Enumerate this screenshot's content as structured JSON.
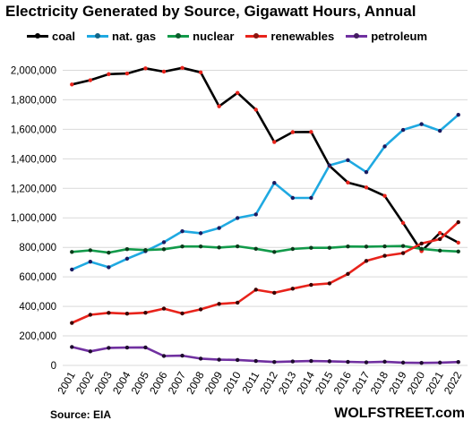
{
  "chart_data": {
    "type": "line",
    "title": "Electricity Generated by Source, Gigawatt Hours, Annual",
    "x": [
      "2001",
      "2002",
      "2003",
      "2004",
      "2005",
      "2006",
      "2007",
      "2008",
      "2009",
      "2010",
      "2011",
      "2012",
      "2013",
      "2014",
      "2015",
      "2016",
      "2017",
      "2018",
      "2019",
      "2020",
      "2021",
      "2022"
    ],
    "ylim": [
      0,
      2100000
    ],
    "yticks": [
      0,
      200000,
      400000,
      600000,
      800000,
      1000000,
      1200000,
      1400000,
      1600000,
      1800000,
      2000000
    ],
    "ytick_labels": [
      "0",
      "200,000",
      "400,000",
      "600,000",
      "800,000",
      "1,000,000",
      "1,200,000",
      "1,400,000",
      "1,600,000",
      "1,800,000",
      "2,000,000"
    ],
    "grid": true,
    "legend_position": "top",
    "series": [
      {
        "name": "coal",
        "color": "#000000",
        "marker_color": "#e8231b",
        "values": [
          1904000,
          1933000,
          1974000,
          1978000,
          2013000,
          1991000,
          2016000,
          1986000,
          1756000,
          1847000,
          1733000,
          1514000,
          1581000,
          1582000,
          1352000,
          1239000,
          1206000,
          1149000,
          965000,
          774000,
          898000,
          832000
        ]
      },
      {
        "name": "nat. gas",
        "color": "#1fa9e1",
        "marker_color": "#1a1a60",
        "values": [
          650000,
          703000,
          665000,
          723000,
          774000,
          835000,
          909000,
          896000,
          931000,
          999000,
          1023000,
          1237000,
          1135000,
          1135000,
          1356000,
          1391000,
          1310000,
          1484000,
          1596000,
          1635000,
          1590000,
          1698000
        ]
      },
      {
        "name": "nuclear",
        "color": "#129a4a",
        "marker_color": "#0b3a1b",
        "values": [
          769000,
          780000,
          764000,
          788000,
          782000,
          787000,
          806000,
          806000,
          799000,
          807000,
          790000,
          769000,
          789000,
          797000,
          797000,
          806000,
          805000,
          807000,
          809000,
          790000,
          778000,
          772000
        ]
      },
      {
        "name": "renewables",
        "color": "#e8231b",
        "marker_color": "#3a0000",
        "values": [
          288000,
          343000,
          356000,
          351000,
          357000,
          385000,
          352000,
          380000,
          417000,
          425000,
          513000,
          492000,
          520000,
          546000,
          556000,
          620000,
          708000,
          743000,
          761000,
          826000,
          856000,
          971000
        ]
      },
      {
        "name": "petroleum",
        "color": "#7030a0",
        "marker_color": "#1e0b2e",
        "values": [
          125000,
          95000,
          119000,
          121000,
          122000,
          64000,
          66000,
          46000,
          39000,
          37000,
          30000,
          23000,
          27000,
          30000,
          28000,
          24000,
          21000,
          25000,
          19000,
          17000,
          19000,
          23000
        ]
      }
    ],
    "source": "Source: EIA",
    "brand": "WOLFSTREET.com"
  }
}
